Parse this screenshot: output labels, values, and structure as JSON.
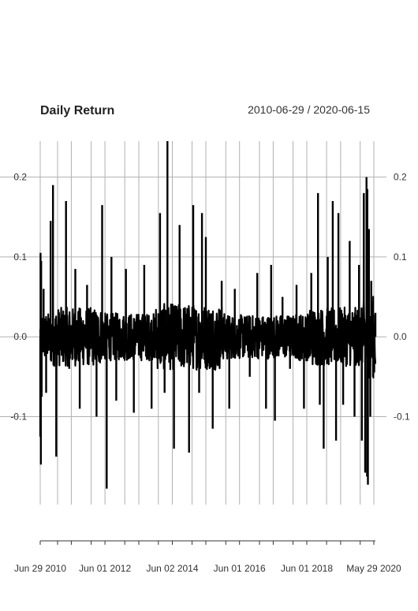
{
  "chart_data": {
    "type": "line",
    "title": "Daily Return",
    "date_range": "2010-06-29 / 2020-06-15",
    "x_start": "2010-06-29",
    "x_end": "2020-06-15",
    "ylim": [
      -0.21,
      0.245
    ],
    "yticks": [
      0.2,
      0.1,
      0.0,
      -0.1
    ],
    "ytick_labels": [
      "0.2",
      "0.1",
      "0.0",
      "-0.1"
    ],
    "xtick_labels": [
      {
        "label": "Jun 29 2010",
        "date": "2010-06-29"
      },
      {
        "label": "Jun 01 2012",
        "date": "2012-06-01"
      },
      {
        "label": "Jun 02 2014",
        "date": "2014-06-02"
      },
      {
        "label": "Jun 01 2016",
        "date": "2016-06-01"
      },
      {
        "label": "Jun 01 2018",
        "date": "2018-06-01"
      },
      {
        "label": "May 29 2020",
        "date": "2020-05-29"
      }
    ],
    "x_gridlines": [
      "2010-06-29",
      "2011-01-03",
      "2011-06-01",
      "2012-01-03",
      "2012-06-01",
      "2013-01-02",
      "2013-06-03",
      "2014-01-02",
      "2014-06-02",
      "2015-01-02",
      "2015-06-01",
      "2016-01-04",
      "2016-06-01",
      "2017-01-03",
      "2017-06-01",
      "2018-01-02",
      "2018-06-01",
      "2019-01-02",
      "2019-06-03",
      "2020-01-02",
      "2020-05-29"
    ],
    "grid": true,
    "series": [
      {
        "color": "#000000",
        "values": [
          {
            "date": "2010-06-29",
            "y": 0.0
          },
          {
            "date": "2010-06-30",
            "y": -0.125
          },
          {
            "date": "2010-07-02",
            "y": 0.105
          },
          {
            "date": "2010-07-06",
            "y": -0.16
          },
          {
            "date": "2010-07-09",
            "y": 0.095
          },
          {
            "date": "2010-07-14",
            "y": -0.075
          },
          {
            "date": "2010-08-05",
            "y": 0.06
          },
          {
            "date": "2010-09-01",
            "y": -0.07
          },
          {
            "date": "2010-10-20",
            "y": 0.145
          },
          {
            "date": "2010-11-15",
            "y": 0.19
          },
          {
            "date": "2010-12-20",
            "y": -0.15
          },
          {
            "date": "2011-04-05",
            "y": 0.17
          },
          {
            "date": "2011-05-10",
            "y": -0.04
          },
          {
            "date": "2011-07-15",
            "y": 0.085
          },
          {
            "date": "2011-09-01",
            "y": -0.09
          },
          {
            "date": "2011-11-20",
            "y": 0.065
          },
          {
            "date": "2012-03-01",
            "y": -0.1
          },
          {
            "date": "2012-05-01",
            "y": 0.165
          },
          {
            "date": "2012-06-20",
            "y": -0.19
          },
          {
            "date": "2012-08-10",
            "y": 0.1
          },
          {
            "date": "2012-10-01",
            "y": -0.08
          },
          {
            "date": "2013-01-15",
            "y": 0.085
          },
          {
            "date": "2013-04-10",
            "y": -0.095
          },
          {
            "date": "2013-08-01",
            "y": 0.09
          },
          {
            "date": "2013-10-20",
            "y": -0.09
          },
          {
            "date": "2014-01-20",
            "y": 0.155
          },
          {
            "date": "2014-03-10",
            "y": -0.07
          },
          {
            "date": "2014-04-10",
            "y": 0.245
          },
          {
            "date": "2014-06-20",
            "y": -0.14
          },
          {
            "date": "2014-08-20",
            "y": 0.14
          },
          {
            "date": "2014-12-01",
            "y": -0.145
          },
          {
            "date": "2015-01-15",
            "y": 0.165
          },
          {
            "date": "2015-03-20",
            "y": -0.07
          },
          {
            "date": "2015-04-20",
            "y": 0.155
          },
          {
            "date": "2015-06-01",
            "y": 0.125
          },
          {
            "date": "2015-08-15",
            "y": -0.115
          },
          {
            "date": "2015-11-20",
            "y": 0.07
          },
          {
            "date": "2016-02-10",
            "y": -0.09
          },
          {
            "date": "2016-04-10",
            "y": 0.06
          },
          {
            "date": "2016-09-20",
            "y": -0.05
          },
          {
            "date": "2016-12-10",
            "y": 0.08
          },
          {
            "date": "2017-03-15",
            "y": -0.09
          },
          {
            "date": "2017-05-10",
            "y": 0.09
          },
          {
            "date": "2017-06-20",
            "y": -0.105
          },
          {
            "date": "2017-09-10",
            "y": 0.05
          },
          {
            "date": "2017-12-01",
            "y": -0.04
          },
          {
            "date": "2018-02-10",
            "y": 0.065
          },
          {
            "date": "2018-05-01",
            "y": -0.09
          },
          {
            "date": "2018-07-20",
            "y": 0.08
          },
          {
            "date": "2018-10-01",
            "y": 0.18
          },
          {
            "date": "2018-10-20",
            "y": -0.085
          },
          {
            "date": "2018-12-01",
            "y": -0.14
          },
          {
            "date": "2019-01-15",
            "y": 0.1
          },
          {
            "date": "2019-03-10",
            "y": 0.17
          },
          {
            "date": "2019-04-15",
            "y": -0.13
          },
          {
            "date": "2019-05-10",
            "y": 0.155
          },
          {
            "date": "2019-07-01",
            "y": -0.085
          },
          {
            "date": "2019-09-10",
            "y": 0.12
          },
          {
            "date": "2019-11-01",
            "y": -0.1
          },
          {
            "date": "2019-12-20",
            "y": 0.09
          },
          {
            "date": "2020-01-20",
            "y": -0.13
          },
          {
            "date": "2020-02-10",
            "y": 0.18
          },
          {
            "date": "2020-02-25",
            "y": -0.17
          },
          {
            "date": "2020-03-10",
            "y": 0.2
          },
          {
            "date": "2020-03-16",
            "y": -0.175
          },
          {
            "date": "2020-03-20",
            "y": 0.185
          },
          {
            "date": "2020-03-26",
            "y": -0.185
          },
          {
            "date": "2020-04-06",
            "y": 0.135
          },
          {
            "date": "2020-04-20",
            "y": -0.1
          },
          {
            "date": "2020-05-01",
            "y": 0.07
          },
          {
            "date": "2020-05-20",
            "y": -0.05
          },
          {
            "date": "2020-06-15",
            "y": 0.03
          }
        ]
      }
    ]
  }
}
